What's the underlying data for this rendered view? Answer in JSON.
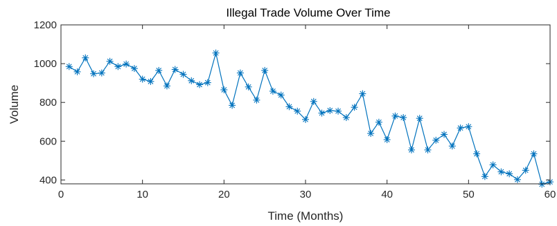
{
  "chart_data": {
    "type": "line",
    "title": "Illegal Trade Volume Over Time",
    "xlabel": "Time (Months)",
    "ylabel": "Volume",
    "xlim": [
      0,
      60
    ],
    "ylim": [
      380,
      1200
    ],
    "xticks": [
      0,
      10,
      20,
      30,
      40,
      50,
      60
    ],
    "yticks": [
      400,
      600,
      800,
      1000,
      1200
    ],
    "grid": false,
    "marker": "asterisk",
    "line_color": "#0072BD",
    "series": [
      {
        "x": [
          1,
          2,
          3,
          4,
          5,
          6,
          7,
          8,
          9,
          10,
          11,
          12,
          13,
          14,
          15,
          16,
          17,
          18,
          19,
          20,
          21,
          22,
          23,
          24,
          25,
          26,
          27,
          28,
          29,
          30,
          31,
          32,
          33,
          34,
          35,
          36,
          37,
          38,
          39,
          40,
          41,
          42,
          43,
          44,
          45,
          46,
          47,
          48,
          49,
          50,
          51,
          52,
          53,
          54,
          55,
          56,
          57,
          58,
          59,
          60
        ],
        "values": [
          985,
          958,
          1030,
          948,
          952,
          1012,
          985,
          998,
          975,
          920,
          908,
          965,
          885,
          970,
          945,
          912,
          892,
          902,
          1055,
          865,
          785,
          952,
          880,
          812,
          965,
          858,
          838,
          778,
          755,
          712,
          805,
          745,
          758,
          755,
          722,
          775,
          845,
          640,
          698,
          608,
          730,
          722,
          555,
          718,
          555,
          605,
          635,
          575,
          668,
          675,
          535,
          418,
          478,
          442,
          432,
          402,
          450,
          535,
          378,
          390
        ]
      }
    ]
  }
}
